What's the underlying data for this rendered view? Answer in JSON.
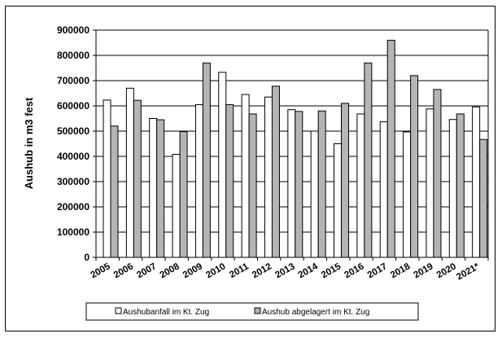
{
  "chart_data": {
    "type": "bar",
    "categories": [
      "2005",
      "2006",
      "2007",
      "2008",
      "2009",
      "2010",
      "2011",
      "2012",
      "2013",
      "2014",
      "2015",
      "2016",
      "2017",
      "2018",
      "2019",
      "2020",
      "2021*"
    ],
    "series": [
      {
        "name": "Aushubanfall im Kt. Zug",
        "color": "#ffffff",
        "values": [
          623000,
          670000,
          550000,
          408000,
          605000,
          733000,
          645000,
          635000,
          585000,
          500000,
          450000,
          568000,
          537000,
          497000,
          588000,
          546000,
          596000
        ]
      },
      {
        "name": "Aushub abgelagert im Kt. Zug",
        "color": "#b4b4b4",
        "values": [
          520000,
          622000,
          545000,
          498000,
          770000,
          605000,
          568000,
          678000,
          578000,
          580000,
          610000,
          770000,
          860000,
          720000,
          665000,
          568000,
          467000
        ]
      }
    ],
    "title": "",
    "xlabel": "",
    "ylabel": "Aushub in m3 fest",
    "ylim": [
      0,
      900000
    ],
    "yticks": [
      0,
      100000,
      200000,
      300000,
      400000,
      500000,
      600000,
      700000,
      800000,
      900000
    ],
    "grid": "horizontal",
    "legend": "bottom"
  }
}
